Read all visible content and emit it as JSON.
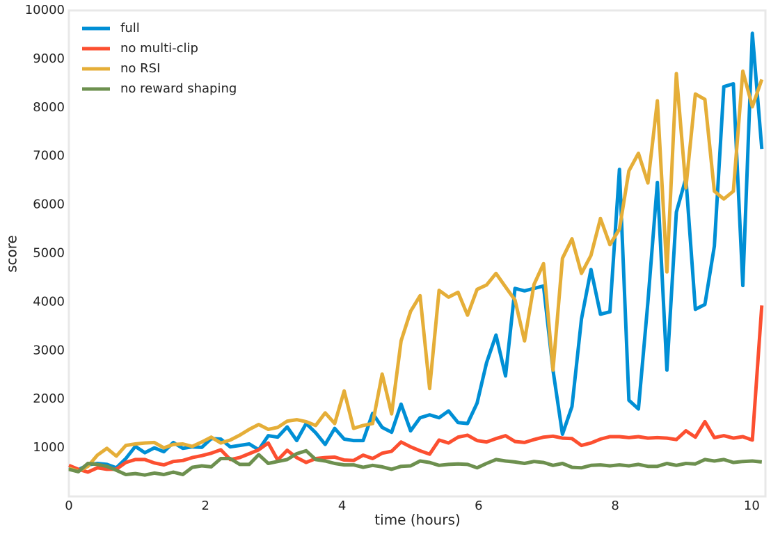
{
  "chart_data": {
    "type": "line",
    "x_label": "time (hours)",
    "y_label": "score",
    "x": [
      0,
      0.139,
      0.278,
      0.417,
      0.556,
      0.695,
      0.834,
      0.973,
      1.112,
      1.251,
      1.39,
      1.529,
      1.668,
      1.807,
      1.946,
      2.085,
      2.224,
      2.363,
      2.502,
      2.641,
      2.78,
      2.919,
      3.058,
      3.197,
      3.336,
      3.475,
      3.614,
      3.753,
      3.892,
      4.031,
      4.17,
      4.309,
      4.448,
      4.587,
      4.726,
      4.865,
      5.004,
      5.143,
      5.282,
      5.421,
      5.56,
      5.699,
      5.838,
      5.977,
      6.116,
      6.255,
      6.394,
      6.533,
      6.672,
      6.811,
      6.95,
      7.089,
      7.228,
      7.367,
      7.506,
      7.645,
      7.784,
      7.923,
      8.062,
      8.201,
      8.34,
      8.479,
      8.618,
      8.757,
      8.896,
      9.035,
      9.174,
      9.313,
      9.452,
      9.591,
      9.73,
      9.869,
      10.008,
      10.147
    ],
    "series": [
      {
        "name": "full",
        "color": "#008fd5",
        "values": [
          600,
          550,
          650,
          680,
          660,
          590,
          780,
          1030,
          900,
          1000,
          920,
          1110,
          990,
          1020,
          1010,
          1190,
          1180,
          1020,
          1050,
          1080,
          960,
          1250,
          1220,
          1430,
          1150,
          1500,
          1310,
          1070,
          1400,
          1180,
          1150,
          1150,
          1710,
          1420,
          1320,
          1900,
          1350,
          1620,
          1680,
          1620,
          1760,
          1520,
          1500,
          1920,
          2750,
          3320,
          2480,
          4280,
          4230,
          4280,
          4330,
          2600,
          1280,
          1850,
          3650,
          4670,
          3750,
          3800,
          6730,
          1980,
          1800,
          4000,
          6460,
          2600,
          5850,
          6550,
          3850,
          3950,
          5150,
          8430,
          8490,
          4340,
          9530,
          7150
        ]
      },
      {
        "name": "no multi-clip",
        "color": "#fc4f30",
        "values": [
          640,
          560,
          500,
          590,
          560,
          560,
          700,
          760,
          760,
          690,
          650,
          720,
          740,
          800,
          840,
          890,
          960,
          760,
          800,
          880,
          960,
          1100,
          750,
          950,
          800,
          700,
          780,
          800,
          810,
          750,
          740,
          850,
          780,
          890,
          930,
          1120,
          1020,
          940,
          870,
          1160,
          1100,
          1220,
          1260,
          1150,
          1120,
          1190,
          1250,
          1130,
          1110,
          1170,
          1220,
          1240,
          1200,
          1190,
          1050,
          1100,
          1180,
          1230,
          1230,
          1210,
          1230,
          1200,
          1210,
          1200,
          1170,
          1350,
          1220,
          1540,
          1210,
          1250,
          1200,
          1230,
          1160,
          3930
        ]
      },
      {
        "name": "no RSI",
        "color": "#e5ae38",
        "values": [
          580,
          520,
          620,
          850,
          990,
          830,
          1050,
          1080,
          1100,
          1110,
          1000,
          1070,
          1080,
          1030,
          1120,
          1220,
          1100,
          1160,
          1260,
          1380,
          1480,
          1380,
          1420,
          1550,
          1580,
          1540,
          1460,
          1720,
          1500,
          2170,
          1400,
          1460,
          1500,
          2520,
          1700,
          3200,
          3810,
          4130,
          2220,
          4240,
          4100,
          4200,
          3730,
          4260,
          4350,
          4590,
          4310,
          4040,
          3200,
          4360,
          4790,
          2600,
          4900,
          5300,
          4590,
          4960,
          5720,
          5180,
          5500,
          6700,
          7060,
          6450,
          8140,
          4620,
          8700,
          6350,
          8280,
          8170,
          6280,
          6120,
          6280,
          8750,
          8020,
          8580
        ]
      },
      {
        "name": "no reward shaping",
        "color": "#6d904f",
        "values": [
          560,
          510,
          680,
          660,
          620,
          540,
          450,
          470,
          440,
          480,
          450,
          500,
          450,
          600,
          630,
          610,
          780,
          780,
          660,
          660,
          860,
          680,
          720,
          760,
          880,
          940,
          760,
          730,
          680,
          650,
          650,
          600,
          640,
          610,
          560,
          620,
          630,
          730,
          700,
          640,
          660,
          670,
          660,
          590,
          680,
          760,
          730,
          710,
          680,
          720,
          700,
          640,
          680,
          600,
          590,
          640,
          650,
          630,
          650,
          630,
          660,
          620,
          620,
          680,
          640,
          680,
          670,
          760,
          730,
          760,
          700,
          720,
          730,
          710
        ]
      }
    ],
    "xlim": [
      0,
      10.2
    ],
    "ylim": [
      0,
      10000
    ],
    "xticks": [
      0,
      2,
      4,
      6,
      8,
      10
    ],
    "yticks": [
      1000,
      2000,
      3000,
      4000,
      5000,
      6000,
      7000,
      8000,
      9000,
      10000
    ],
    "grid": false,
    "legend": "upper left"
  }
}
